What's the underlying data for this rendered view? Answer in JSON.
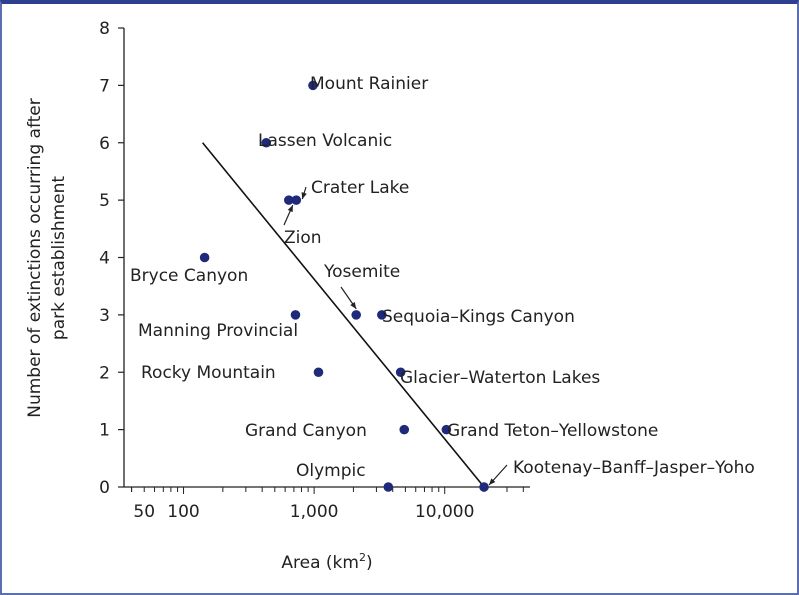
{
  "chart_data": {
    "type": "scatter",
    "title": "",
    "xlabel": "Area (km",
    "xlabel_sup": "2",
    "xlabel_end": ")",
    "ylabel_line1": "Number of extinctions occurring after",
    "ylabel_line2": "park establishment",
    "x_scale": "log",
    "xlim": [
      35,
      45000
    ],
    "ylim": [
      0,
      8
    ],
    "x_ticks": [
      {
        "value": 50,
        "label": "50"
      },
      {
        "value": 100,
        "label": "100"
      },
      {
        "value": 1000,
        "label": "1,000"
      },
      {
        "value": 10000,
        "label": "10,000"
      }
    ],
    "y_ticks": [
      "0",
      "1",
      "2",
      "3",
      "4",
      "5",
      "6",
      "7",
      "8"
    ],
    "point_color": "#1f2a7a",
    "line_color": "#111111",
    "points": [
      {
        "name": "Mount Rainier",
        "x": 980,
        "y": 7
      },
      {
        "name": "Lassen Volcanic",
        "x": 430,
        "y": 6
      },
      {
        "name": "Crater Lake",
        "x": 730,
        "y": 5
      },
      {
        "name": "Zion",
        "x": 640,
        "y": 5
      },
      {
        "name": "Bryce Canyon",
        "x": 145,
        "y": 4
      },
      {
        "name": "Yosemite",
        "x": 2100,
        "y": 3
      },
      {
        "name": "Sequoia–Kings Canyon",
        "x": 3300,
        "y": 3
      },
      {
        "name": "Manning Provincial",
        "x": 720,
        "y": 3
      },
      {
        "name": "Rocky Mountain",
        "x": 1080,
        "y": 2
      },
      {
        "name": "Glacier–Waterton Lakes",
        "x": 4600,
        "y": 2
      },
      {
        "name": "Grand Canyon",
        "x": 4900,
        "y": 1
      },
      {
        "name": "Grand Teton–Yellowstone",
        "x": 10300,
        "y": 1
      },
      {
        "name": "Olympic",
        "x": 3700,
        "y": 0
      },
      {
        "name": "Kootenay–Banff–Jasper–Yoho",
        "x": 20000,
        "y": 0
      }
    ],
    "regression_line": {
      "x_start": 140,
      "y_start": 6,
      "x_end": 20000,
      "y_end": 0
    }
  }
}
